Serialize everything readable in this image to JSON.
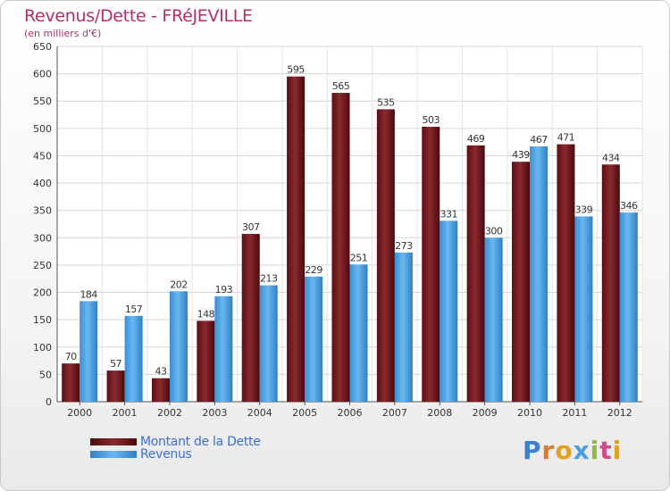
{
  "chart_data": {
    "type": "bar",
    "title": "Revenus/Dette - FRéJEVILLE",
    "subtitle": "(en milliers d'€)",
    "categories": [
      "2000",
      "2001",
      "2002",
      "2003",
      "2004",
      "2005",
      "2006",
      "2007",
      "2008",
      "2009",
      "2010",
      "2011",
      "2012"
    ],
    "series": [
      {
        "name": "Montant de la Dette",
        "color": "#7a1a20",
        "values": [
          70,
          57,
          43,
          148,
          307,
          595,
          565,
          535,
          503,
          469,
          439,
          471,
          434
        ]
      },
      {
        "name": "Revenus",
        "color": "#4da3e6",
        "values": [
          184,
          157,
          202,
          193,
          213,
          229,
          251,
          273,
          331,
          300,
          467,
          339,
          346
        ]
      }
    ],
    "ylim": [
      0,
      650
    ],
    "ytick_step": 50,
    "grid": true,
    "legend": "bottom-left"
  },
  "logo": {
    "letters": [
      {
        "ch": "P",
        "color": "#3a7fd0"
      },
      {
        "ch": "r",
        "color": "#e07a2a"
      },
      {
        "ch": "o",
        "color": "#e0a020"
      },
      {
        "ch": "x",
        "color": "#4aa0e0"
      },
      {
        "ch": "i",
        "color": "#8bbd3a"
      },
      {
        "ch": "t",
        "color": "#d04a8a"
      },
      {
        "ch": "i",
        "color": "#e0a020"
      }
    ]
  }
}
